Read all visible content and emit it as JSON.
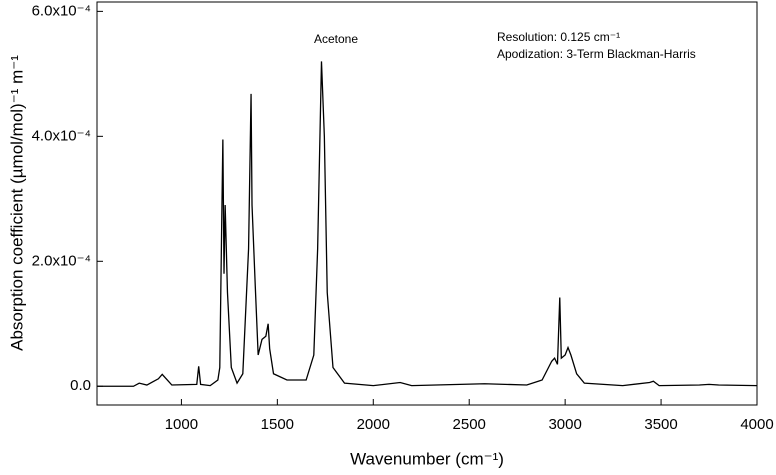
{
  "chart_data": {
    "type": "line",
    "title": "Acetone",
    "annotations": [
      "Resolution:  0.125 cm⁻¹",
      "Apodization: 3-Term Blackman-Harris"
    ],
    "x_label": "Wavenumber (cm⁻¹)",
    "y_label": "Absorption coefficient (µmol/mol)⁻¹ m⁻¹",
    "xlim": [
      560,
      4000
    ],
    "ylim": [
      -3e-05,
      0.000615
    ],
    "xticks": [
      1000,
      1500,
      2000,
      2500,
      3000,
      3500,
      4000
    ],
    "yticks": [
      {
        "value": 0,
        "label": "0.0"
      },
      {
        "value": 0.0002,
        "label": "2.0x10⁻⁴"
      },
      {
        "value": 0.0004,
        "label": "4.0x10⁻⁴"
      },
      {
        "value": 0.0006,
        "label": "6.0x10⁻⁴"
      }
    ],
    "series": [
      {
        "color": "#000000",
        "x": [
          560,
          750,
          780,
          820,
          880,
          900,
          950,
          1080,
          1090,
          1100,
          1150,
          1190,
          1200,
          1210,
          1216,
          1222,
          1228,
          1240,
          1260,
          1290,
          1320,
          1350,
          1363,
          1368,
          1385,
          1400,
          1420,
          1440,
          1452,
          1460,
          1480,
          1550,
          1650,
          1690,
          1710,
          1730,
          1745,
          1760,
          1790,
          1850,
          2000,
          2140,
          2200,
          2580,
          2800,
          2880,
          2930,
          2945,
          2960,
          2972,
          2980,
          3000,
          3015,
          3030,
          3060,
          3100,
          3300,
          3440,
          3460,
          3490,
          3700,
          3750,
          3800,
          4000
        ],
        "values": [
          0,
          0,
          5e-06,
          2e-06,
          1.2e-05,
          1.9e-05,
          2e-06,
          3e-06,
          3.2e-05,
          3e-06,
          1e-06,
          1e-05,
          3e-05,
          0.00026,
          0.000395,
          0.00018,
          0.00029,
          0.00015,
          3e-05,
          5e-06,
          2e-05,
          0.00022,
          0.000468,
          0.00029,
          0.00016,
          5e-05,
          7.5e-05,
          8e-05,
          0.0001,
          6e-05,
          2e-05,
          1e-05,
          1e-05,
          5e-05,
          0.00022,
          0.00052,
          0.0004,
          0.00015,
          3e-05,
          5e-06,
          1e-06,
          6e-06,
          1e-06,
          4e-06,
          2e-06,
          1e-05,
          4e-05,
          4.5e-05,
          3.5e-05,
          0.000142,
          4.5e-05,
          5e-05,
          6.2e-05,
          5e-05,
          2e-05,
          5e-06,
          1e-06,
          6e-06,
          8e-06,
          1e-06,
          2e-06,
          3e-06,
          2e-06,
          1e-06
        ]
      }
    ]
  }
}
